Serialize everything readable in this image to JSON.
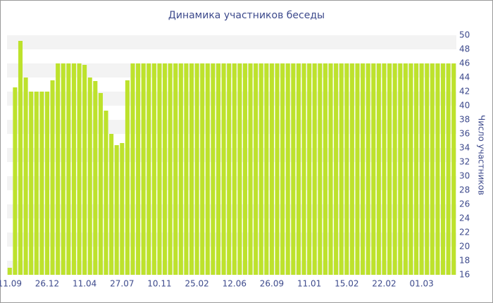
{
  "chart_data": {
    "type": "bar",
    "title": "Динамика участников беседы",
    "y_label": "Число участников",
    "categories": [
      "11.09",
      null,
      null,
      null,
      null,
      null,
      null,
      "26.12",
      null,
      null,
      null,
      null,
      null,
      null,
      "11.04",
      null,
      null,
      null,
      null,
      null,
      null,
      "27.07",
      null,
      null,
      null,
      null,
      null,
      null,
      "10.11",
      null,
      null,
      null,
      null,
      null,
      null,
      "25.02",
      null,
      null,
      null,
      null,
      null,
      null,
      "12.06",
      null,
      null,
      null,
      null,
      null,
      null,
      "26.09",
      null,
      null,
      null,
      null,
      null,
      null,
      "11.01",
      null,
      null,
      null,
      null,
      null,
      null,
      "15.02",
      null,
      null,
      null,
      null,
      null,
      null,
      "22.02",
      null,
      null,
      null,
      null,
      null,
      null,
      "01.03",
      null,
      null,
      null,
      null,
      null,
      null
    ],
    "values": [
      17,
      42.6,
      49.2,
      44,
      42,
      42,
      42,
      42,
      43.6,
      46,
      46,
      46,
      46,
      46,
      45.8,
      44,
      43.5,
      41.8,
      39.3,
      36,
      34.4,
      34.7,
      43.6,
      46,
      46,
      46,
      46,
      46,
      46,
      46,
      46,
      46,
      46,
      46,
      46,
      46,
      46,
      46,
      46,
      46,
      46,
      46,
      46,
      46,
      46,
      46,
      46,
      46,
      46,
      46,
      46,
      46,
      46,
      46,
      46,
      46,
      46,
      46,
      46,
      46,
      46,
      46,
      46,
      46,
      46,
      46,
      46,
      46,
      46,
      46,
      46,
      46,
      46,
      46,
      46,
      46,
      46,
      46,
      46,
      46,
      46,
      46,
      46,
      46
    ],
    "color": "#bde22c",
    "ylim": [
      16,
      50
    ],
    "yticks": [
      16,
      18,
      20,
      22,
      24,
      26,
      28,
      30,
      32,
      34,
      36,
      38,
      40,
      42,
      44,
      46,
      48,
      50
    ],
    "grid": true
  }
}
